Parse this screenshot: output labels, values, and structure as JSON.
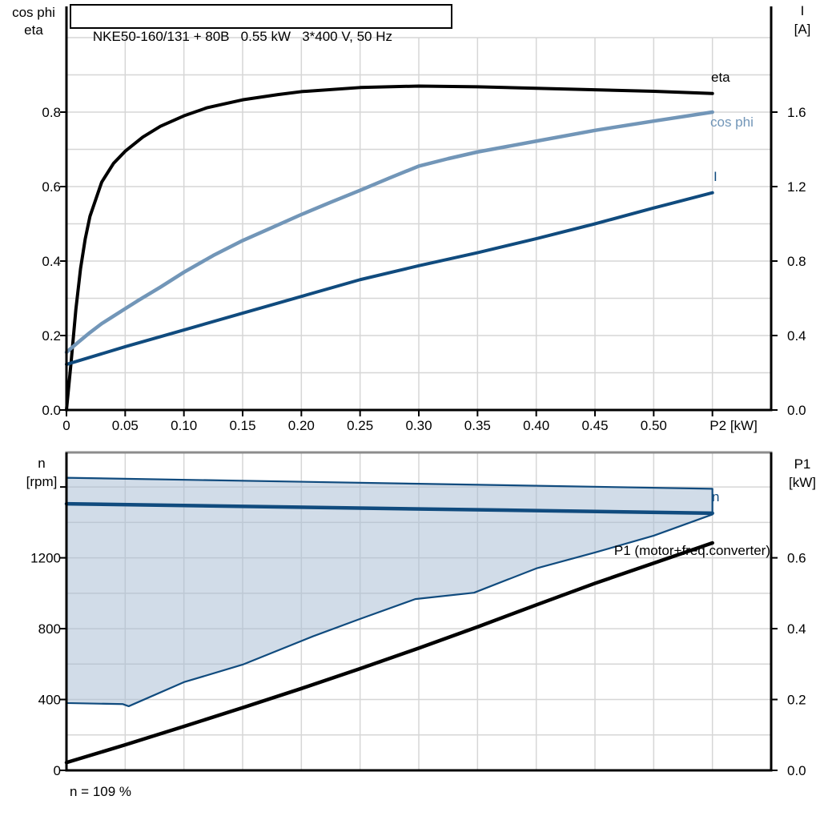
{
  "colors": {
    "black": "#000000",
    "steel_blue": "#7296b8",
    "navy": "#104b7e",
    "band_fill": "rgba(163,186,209,0.5)",
    "grid": "#d6d6d6",
    "frame_gray": "#8c8c8c"
  },
  "chart_data": [
    {
      "type": "line",
      "title": "NKE50-160/131 + 80B   0.55 kW   3*400 V, 50 Hz",
      "x_axis": {
        "label": "P2 [kW]",
        "label_at": 0.568,
        "range": [
          0,
          0.6
        ],
        "ticks": [
          {
            "v": 0,
            "label": "0"
          },
          {
            "v": 0.05,
            "label": "0.05"
          },
          {
            "v": 0.1,
            "label": "0.10"
          },
          {
            "v": 0.15,
            "label": "0.15"
          },
          {
            "v": 0.2,
            "label": "0.20"
          },
          {
            "v": 0.25,
            "label": "0.25"
          },
          {
            "v": 0.3,
            "label": "0.30"
          },
          {
            "v": 0.35,
            "label": "0.35"
          },
          {
            "v": 0.4,
            "label": "0.40"
          },
          {
            "v": 0.45,
            "label": "0.45"
          },
          {
            "v": 0.5,
            "label": "0.50"
          },
          {
            "v": 0.55,
            "label": ""
          }
        ],
        "grid": [
          0.05,
          0.1,
          0.15,
          0.2,
          0.25,
          0.3,
          0.35,
          0.4,
          0.45,
          0.5,
          0.55
        ]
      },
      "left_axis": {
        "title_lines": [
          "cos phi",
          "eta"
        ],
        "range": [
          0,
          1.0
        ],
        "ticks": [
          {
            "v": 0.0,
            "label": "0.0"
          },
          {
            "v": 0.2,
            "label": "0.2"
          },
          {
            "v": 0.4,
            "label": "0.4"
          },
          {
            "v": 0.6,
            "label": "0.6"
          },
          {
            "v": 0.8,
            "label": "0.8"
          }
        ],
        "grid": [
          0.1,
          0.2,
          0.3,
          0.4,
          0.5,
          0.6,
          0.7,
          0.8,
          0.9,
          1.0
        ]
      },
      "right_axis": {
        "title_lines": [
          "I",
          "[A]"
        ],
        "range": [
          0,
          2.0
        ],
        "ticks": [
          {
            "v": 0.0,
            "label": "0.0"
          },
          {
            "v": 0.4,
            "label": "0.4"
          },
          {
            "v": 0.8,
            "label": "0.8"
          },
          {
            "v": 1.2,
            "label": "1.2"
          },
          {
            "v": 1.6,
            "label": "1.6"
          }
        ]
      },
      "series": [
        {
          "name": "eta",
          "label": "eta",
          "axis": "left",
          "color": "black",
          "width": 4,
          "points": [
            [
              0,
              0
            ],
            [
              0.004,
              0.13
            ],
            [
              0.008,
              0.27
            ],
            [
              0.012,
              0.38
            ],
            [
              0.016,
              0.46
            ],
            [
              0.02,
              0.52
            ],
            [
              0.03,
              0.612
            ],
            [
              0.04,
              0.662
            ],
            [
              0.05,
              0.695
            ],
            [
              0.065,
              0.733
            ],
            [
              0.08,
              0.762
            ],
            [
              0.1,
              0.79
            ],
            [
              0.12,
              0.812
            ],
            [
              0.15,
              0.833
            ],
            [
              0.18,
              0.847
            ],
            [
              0.2,
              0.855
            ],
            [
              0.25,
              0.866
            ],
            [
              0.3,
              0.87
            ],
            [
              0.35,
              0.868
            ],
            [
              0.4,
              0.864
            ],
            [
              0.45,
              0.86
            ],
            [
              0.5,
              0.856
            ],
            [
              0.55,
              0.85
            ]
          ]
        },
        {
          "name": "cos-phi",
          "label": "cos phi",
          "axis": "left",
          "color": "steel_blue",
          "width": 4.5,
          "points": [
            [
              0,
              0.155
            ],
            [
              0.01,
              0.182
            ],
            [
              0.02,
              0.208
            ],
            [
              0.03,
              0.232
            ],
            [
              0.04,
              0.252
            ],
            [
              0.05,
              0.272
            ],
            [
              0.06,
              0.292
            ],
            [
              0.08,
              0.33
            ],
            [
              0.1,
              0.37
            ],
            [
              0.125,
              0.415
            ],
            [
              0.15,
              0.455
            ],
            [
              0.175,
              0.49
            ],
            [
              0.2,
              0.525
            ],
            [
              0.225,
              0.558
            ],
            [
              0.25,
              0.59
            ],
            [
              0.275,
              0.623
            ],
            [
              0.3,
              0.655
            ],
            [
              0.325,
              0.675
            ],
            [
              0.35,
              0.693
            ],
            [
              0.4,
              0.722
            ],
            [
              0.45,
              0.751
            ],
            [
              0.5,
              0.776
            ],
            [
              0.55,
              0.8
            ]
          ]
        },
        {
          "name": "current",
          "label": "I",
          "axis": "right",
          "color": "navy",
          "width": 4,
          "points": [
            [
              0,
              0.245
            ],
            [
              0.05,
              0.34
            ],
            [
              0.1,
              0.43
            ],
            [
              0.15,
              0.52
            ],
            [
              0.2,
              0.61
            ],
            [
              0.25,
              0.7
            ],
            [
              0.3,
              0.775
            ],
            [
              0.35,
              0.845
            ],
            [
              0.4,
              0.92
            ],
            [
              0.45,
              1.0
            ],
            [
              0.5,
              1.085
            ],
            [
              0.55,
              1.167
            ]
          ]
        }
      ]
    },
    {
      "type": "line+band",
      "annotation": "n = 109 %",
      "x_axis": {
        "range": [
          0,
          0.6
        ],
        "ticks": [],
        "grid": [
          0.05,
          0.1,
          0.15,
          0.2,
          0.25,
          0.3,
          0.35,
          0.4,
          0.45,
          0.5,
          0.55
        ]
      },
      "left_axis": {
        "title_lines": [
          "n",
          "[rpm]"
        ],
        "range": [
          0,
          1795
        ],
        "ticks": [
          {
            "v": 0,
            "label": "0"
          },
          {
            "v": 400,
            "label": "400"
          },
          {
            "v": 800,
            "label": "800"
          },
          {
            "v": 1200,
            "label": "1200"
          },
          {
            "v": 1600,
            "label": ""
          }
        ],
        "grid": [
          200,
          400,
          600,
          800,
          1000,
          1200,
          1400,
          1600
        ]
      },
      "right_axis": {
        "title_lines": [
          "P1",
          "[kW]"
        ],
        "range": [
          0,
          0.8975
        ],
        "ticks": [
          {
            "v": 0.0,
            "label": "0.0"
          },
          {
            "v": 0.2,
            "label": "0.2"
          },
          {
            "v": 0.4,
            "label": "0.4"
          },
          {
            "v": 0.6,
            "label": "0.6"
          }
        ]
      },
      "band": {
        "name": "speed-operating-range",
        "axis": "left",
        "upper": [
          [
            0,
            1652
          ],
          [
            0.55,
            1590
          ]
        ],
        "lower": [
          [
            0,
            380
          ],
          [
            0.048,
            374
          ],
          [
            0.053,
            362
          ],
          [
            0.1,
            498
          ],
          [
            0.15,
            597
          ],
          [
            0.21,
            757
          ],
          [
            0.25,
            855
          ],
          [
            0.297,
            967
          ],
          [
            0.347,
            1003
          ],
          [
            0.4,
            1140
          ],
          [
            0.45,
            1230
          ],
          [
            0.5,
            1325
          ],
          [
            0.55,
            1445
          ]
        ]
      },
      "series": [
        {
          "name": "speed",
          "label": "n",
          "axis": "left",
          "color": "navy",
          "width": 4.5,
          "points": [
            [
              0,
              1505
            ],
            [
              0.55,
              1452
            ]
          ]
        },
        {
          "name": "p1-input-power",
          "label": "P1 (motor+freq.converter)",
          "axis": "right",
          "color": "black",
          "width": 4.5,
          "points": [
            [
              0,
              0.022
            ],
            [
              0.05,
              0.072
            ],
            [
              0.1,
              0.124
            ],
            [
              0.15,
              0.177
            ],
            [
              0.2,
              0.231
            ],
            [
              0.25,
              0.287
            ],
            [
              0.3,
              0.345
            ],
            [
              0.35,
              0.405
            ],
            [
              0.4,
              0.467
            ],
            [
              0.45,
              0.528
            ],
            [
              0.5,
              0.585
            ],
            [
              0.55,
              0.642
            ]
          ]
        }
      ]
    }
  ]
}
